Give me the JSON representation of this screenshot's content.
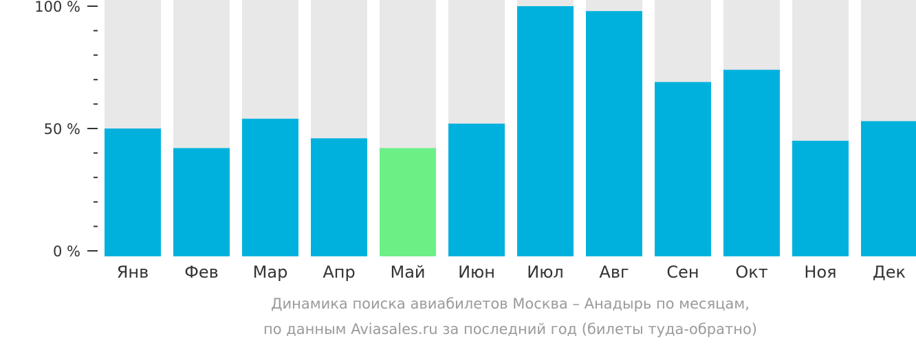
{
  "chart_data": {
    "type": "bar",
    "categories": [
      "Янв",
      "Фев",
      "Мар",
      "Апр",
      "Май",
      "Июн",
      "Июл",
      "Авг",
      "Сен",
      "Окт",
      "Ноя",
      "Дек"
    ],
    "values": [
      50,
      42,
      54,
      46,
      42,
      52,
      100,
      98,
      69,
      74,
      45,
      53
    ],
    "ylim": [
      0,
      100
    ],
    "yticks": [
      {
        "value": 0,
        "label": "0 %"
      },
      {
        "value": 50,
        "label": "50 %"
      },
      {
        "value": 100,
        "label": "100 %"
      }
    ],
    "minor_tick_step": 10,
    "highlight_index": 4,
    "colors": {
      "bar": "#00b1dd",
      "highlight": "#6cf086",
      "background_bar": "#e8e8e8",
      "axis": "#333333"
    }
  },
  "caption": {
    "line1": "Динамика поиска авиабилетов Москва – Анадырь по месяцам,",
    "line2": "по данным Aviasales.ru за последний год (билеты туда-обратно)"
  }
}
